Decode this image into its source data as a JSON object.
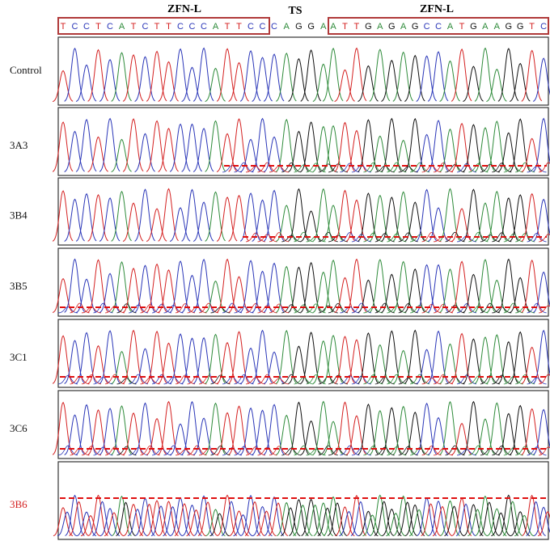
{
  "header": {
    "left_label": "ZFN-L",
    "middle_label": "TS",
    "right_label": "ZFN-L"
  },
  "sequence": {
    "left": [
      "T",
      "C",
      "C",
      "T",
      "C",
      "A",
      "T",
      "C",
      "T",
      "T",
      "C",
      "C",
      "C",
      "A",
      "T",
      "T",
      "C",
      "C"
    ],
    "middle": [
      "C",
      "A",
      "G",
      "G",
      "A"
    ],
    "right": [
      "A",
      "T",
      "T",
      "G",
      "A",
      "G",
      "A",
      "G",
      "C",
      "C",
      "A",
      "T",
      "G",
      "A",
      "A",
      "G",
      "G",
      "T",
      "C"
    ]
  },
  "rows": [
    {
      "label": "Control"
    },
    {
      "label": "3A3"
    },
    {
      "label": "3B4"
    },
    {
      "label": "3B5"
    },
    {
      "label": "3C1"
    },
    {
      "label": "3C6"
    },
    {
      "label": "3B6"
    }
  ]
}
